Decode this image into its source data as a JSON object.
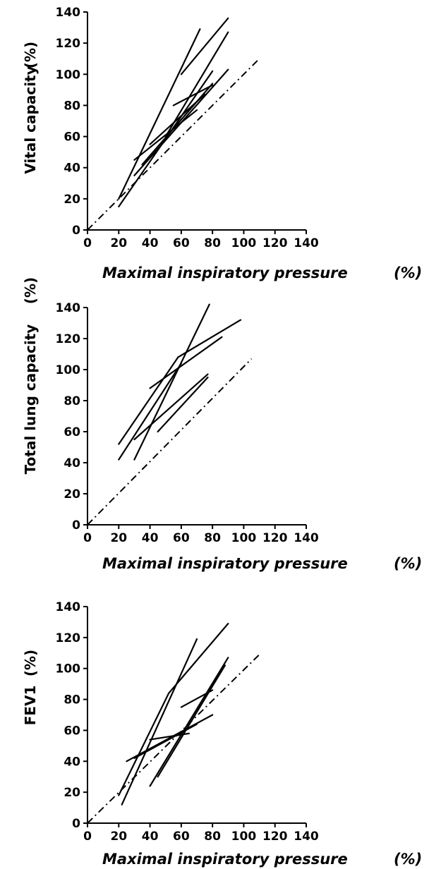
{
  "chart_data": [
    {
      "type": "line",
      "xlabel": "Maximal inspiratory pressure",
      "xunit": "(%)",
      "ylabel": "Vital capacity",
      "yunit": "(%)",
      "xlim": [
        0,
        140
      ],
      "ylim": [
        0,
        140
      ],
      "x_ticks": [
        "0",
        "20",
        "40",
        "60",
        "80",
        "100",
        "120",
        "140"
      ],
      "y_ticks": [
        "0",
        "20",
        "40",
        "60",
        "80",
        "100",
        "120",
        "140"
      ],
      "reference_line": {
        "style": "dash-dot",
        "x": [
          0,
          110
        ],
        "y": [
          0,
          110
        ]
      },
      "series": [
        {
          "x": [
            20,
            72
          ],
          "y": [
            20,
            129
          ]
        },
        {
          "x": [
            20,
            80
          ],
          "y": [
            15,
            102
          ]
        },
        {
          "x": [
            60,
            90
          ],
          "y": [
            100,
            136
          ]
        },
        {
          "x": [
            50,
            90
          ],
          "y": [
            60,
            127
          ]
        },
        {
          "x": [
            30,
            90
          ],
          "y": [
            35,
            103
          ]
        },
        {
          "x": [
            35,
            80
          ],
          "y": [
            42,
            94
          ]
        },
        {
          "x": [
            30,
            70
          ],
          "y": [
            45,
            77
          ]
        },
        {
          "x": [
            55,
            80
          ],
          "y": [
            80,
            93
          ]
        },
        {
          "x": [
            40,
            75
          ],
          "y": [
            55,
            87
          ]
        }
      ]
    },
    {
      "type": "line",
      "xlabel": "Maximal inspiratory pressure",
      "xunit": "(%)",
      "ylabel": "Total lung capacity",
      "yunit": "(%)",
      "xlim": [
        0,
        140
      ],
      "ylim": [
        0,
        140
      ],
      "x_ticks": [
        "0",
        "20",
        "40",
        "60",
        "80",
        "100",
        "120",
        "140"
      ],
      "y_ticks": [
        "0",
        "20",
        "40",
        "60",
        "80",
        "100",
        "120",
        "140"
      ],
      "reference_line": {
        "style": "dash-dot",
        "x": [
          0,
          105
        ],
        "y": [
          0,
          107
        ]
      },
      "series": [
        {
          "x": [
            20,
            58
          ],
          "y": [
            52,
            108
          ]
        },
        {
          "x": [
            58,
            98
          ],
          "y": [
            108,
            132
          ]
        },
        {
          "x": [
            30,
            78
          ],
          "y": [
            42,
            142
          ]
        },
        {
          "x": [
            20,
            60
          ],
          "y": [
            42,
            104
          ]
        },
        {
          "x": [
            40,
            86
          ],
          "y": [
            88,
            121
          ]
        },
        {
          "x": [
            30,
            77
          ],
          "y": [
            55,
            97
          ]
        },
        {
          "x": [
            45,
            77
          ],
          "y": [
            60,
            95
          ]
        }
      ]
    },
    {
      "type": "line",
      "xlabel": "Maximal inspiratory pressure",
      "xunit": "(%)",
      "ylabel": "FEV1",
      "yunit": "(%)",
      "xlim": [
        0,
        140
      ],
      "ylim": [
        0,
        140
      ],
      "x_ticks": [
        "0",
        "20",
        "40",
        "60",
        "80",
        "100",
        "120",
        "140"
      ],
      "y_ticks": [
        "0",
        "20",
        "40",
        "60",
        "80",
        "100",
        "120",
        "140"
      ],
      "reference_line": {
        "style": "dash-dot",
        "x": [
          0,
          110
        ],
        "y": [
          0,
          109
        ]
      },
      "series": [
        {
          "x": [
            22,
            70
          ],
          "y": [
            12,
            119
          ]
        },
        {
          "x": [
            52,
            90
          ],
          "y": [
            84,
            129
          ]
        },
        {
          "x": [
            20,
            52
          ],
          "y": [
            18,
            84
          ]
        },
        {
          "x": [
            40,
            90
          ],
          "y": [
            24,
            107
          ]
        },
        {
          "x": [
            45,
            88
          ],
          "y": [
            30,
            102
          ]
        },
        {
          "x": [
            25,
            80
          ],
          "y": [
            40,
            70
          ]
        },
        {
          "x": [
            60,
            80
          ],
          "y": [
            75,
            86
          ]
        },
        {
          "x": [
            30,
            70
          ],
          "y": [
            42,
            64
          ]
        },
        {
          "x": [
            40,
            65
          ],
          "y": [
            54,
            58
          ]
        }
      ]
    }
  ]
}
